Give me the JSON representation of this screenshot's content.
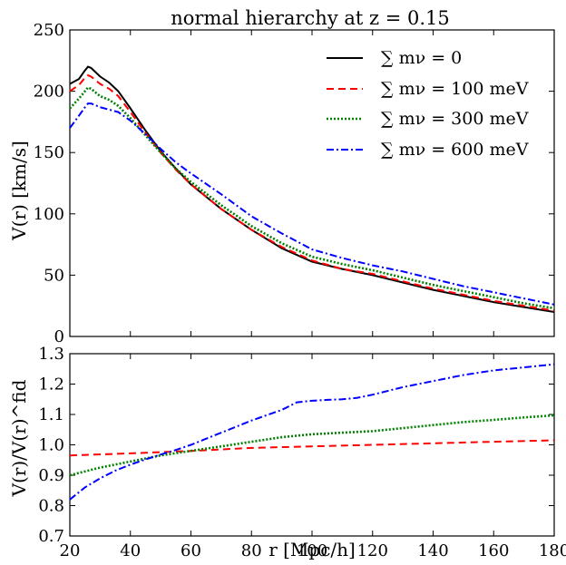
{
  "chart_data": [
    {
      "type": "line",
      "title": "normal hierarchy at z = 0.15",
      "xlabel": "",
      "ylabel": "V(r) [km/s]",
      "xlim": [
        20,
        180
      ],
      "ylim": [
        0,
        250
      ],
      "xticks": [],
      "yticks": [
        "0",
        "50",
        "100",
        "150",
        "200",
        "250"
      ],
      "legend_position": "top-right",
      "series": [
        {
          "name": "∑ mν = 0",
          "color": "#000000",
          "dash": "solid",
          "x": [
            20,
            23,
            25,
            26,
            27,
            30,
            33,
            36,
            40,
            45,
            50,
            55,
            60,
            70,
            80,
            90,
            100,
            110,
            120,
            130,
            140,
            150,
            160,
            170,
            180
          ],
          "y": [
            206,
            210,
            217,
            220,
            219,
            212,
            207,
            200,
            186,
            168,
            151,
            137,
            124,
            104,
            87,
            72,
            61,
            55,
            50,
            44,
            38,
            33,
            28,
            24,
            20
          ]
        },
        {
          "name": "∑ mν = 100 meV",
          "color": "#ff0000",
          "dash": "dashed",
          "x": [
            20,
            23,
            25,
            26,
            27,
            30,
            33,
            36,
            40,
            45,
            50,
            55,
            60,
            70,
            80,
            90,
            100,
            110,
            120,
            130,
            140,
            150,
            160,
            170,
            180
          ],
          "y": [
            200,
            205,
            211,
            213,
            212,
            206,
            202,
            196,
            183,
            166,
            150,
            136,
            124,
            104,
            87,
            73,
            62,
            55,
            51,
            45,
            39,
            34,
            29,
            25,
            21
          ]
        },
        {
          "name": "∑ mν = 300 meV",
          "color": "#008000",
          "dash": "dotted",
          "x": [
            20,
            23,
            25,
            26,
            27,
            30,
            33,
            36,
            40,
            45,
            50,
            55,
            60,
            70,
            80,
            90,
            100,
            110,
            120,
            130,
            140,
            150,
            160,
            170,
            180
          ],
          "y": [
            186,
            194,
            200,
            203,
            202,
            196,
            193,
            188,
            178,
            164,
            150,
            137,
            126,
            107,
            90,
            76,
            65,
            59,
            54,
            48,
            42,
            37,
            32,
            27,
            23
          ]
        },
        {
          "name": "∑ mν = 600 meV",
          "color": "#0000ff",
          "dash": "dashdot",
          "x": [
            20,
            23,
            25,
            26,
            27,
            30,
            33,
            36,
            40,
            45,
            50,
            55,
            60,
            70,
            80,
            90,
            100,
            110,
            120,
            130,
            140,
            150,
            160,
            170,
            180
          ],
          "y": [
            170,
            180,
            187,
            190,
            190,
            187,
            185,
            183,
            176,
            165,
            153,
            142,
            133,
            116,
            98,
            84,
            71,
            64,
            58,
            53,
            47,
            41,
            36,
            31,
            26
          ]
        }
      ]
    },
    {
      "type": "line",
      "title": "",
      "xlabel": "r [Mpc/h]",
      "ylabel": "V(r)/V(r)^fid",
      "xlim": [
        20,
        180
      ],
      "ylim": [
        0.7,
        1.3
      ],
      "xticks": [
        "20",
        "40",
        "60",
        "80",
        "100",
        "120",
        "140",
        "160",
        "180"
      ],
      "yticks": [
        "0.7",
        "0.8",
        "0.9",
        "1.0",
        "1.1",
        "1.2",
        "1.3"
      ],
      "series": [
        {
          "color": "#ff0000",
          "dash": "dashed",
          "x": [
            20,
            40,
            60,
            80,
            100,
            120,
            140,
            160,
            180
          ],
          "y": [
            0.965,
            0.972,
            0.98,
            0.99,
            0.995,
            1.0,
            1.005,
            1.01,
            1.015
          ]
        },
        {
          "color": "#008000",
          "dash": "dotted",
          "x": [
            20,
            30,
            40,
            50,
            60,
            70,
            80,
            90,
            100,
            110,
            120,
            130,
            140,
            150,
            160,
            170,
            180
          ],
          "y": [
            0.9,
            0.925,
            0.945,
            0.965,
            0.98,
            0.995,
            1.01,
            1.025,
            1.035,
            1.04,
            1.045,
            1.055,
            1.065,
            1.075,
            1.082,
            1.09,
            1.097
          ]
        },
        {
          "color": "#0000ff",
          "dash": "dashdot",
          "x": [
            20,
            25,
            30,
            35,
            40,
            45,
            50,
            55,
            60,
            70,
            80,
            90,
            95,
            100,
            105,
            110,
            115,
            120,
            130,
            140,
            150,
            160,
            170,
            180
          ],
          "y": [
            0.82,
            0.86,
            0.89,
            0.915,
            0.935,
            0.952,
            0.968,
            0.983,
            1.0,
            1.04,
            1.08,
            1.115,
            1.14,
            1.145,
            1.148,
            1.15,
            1.155,
            1.165,
            1.19,
            1.21,
            1.23,
            1.245,
            1.255,
            1.265
          ]
        }
      ]
    }
  ]
}
